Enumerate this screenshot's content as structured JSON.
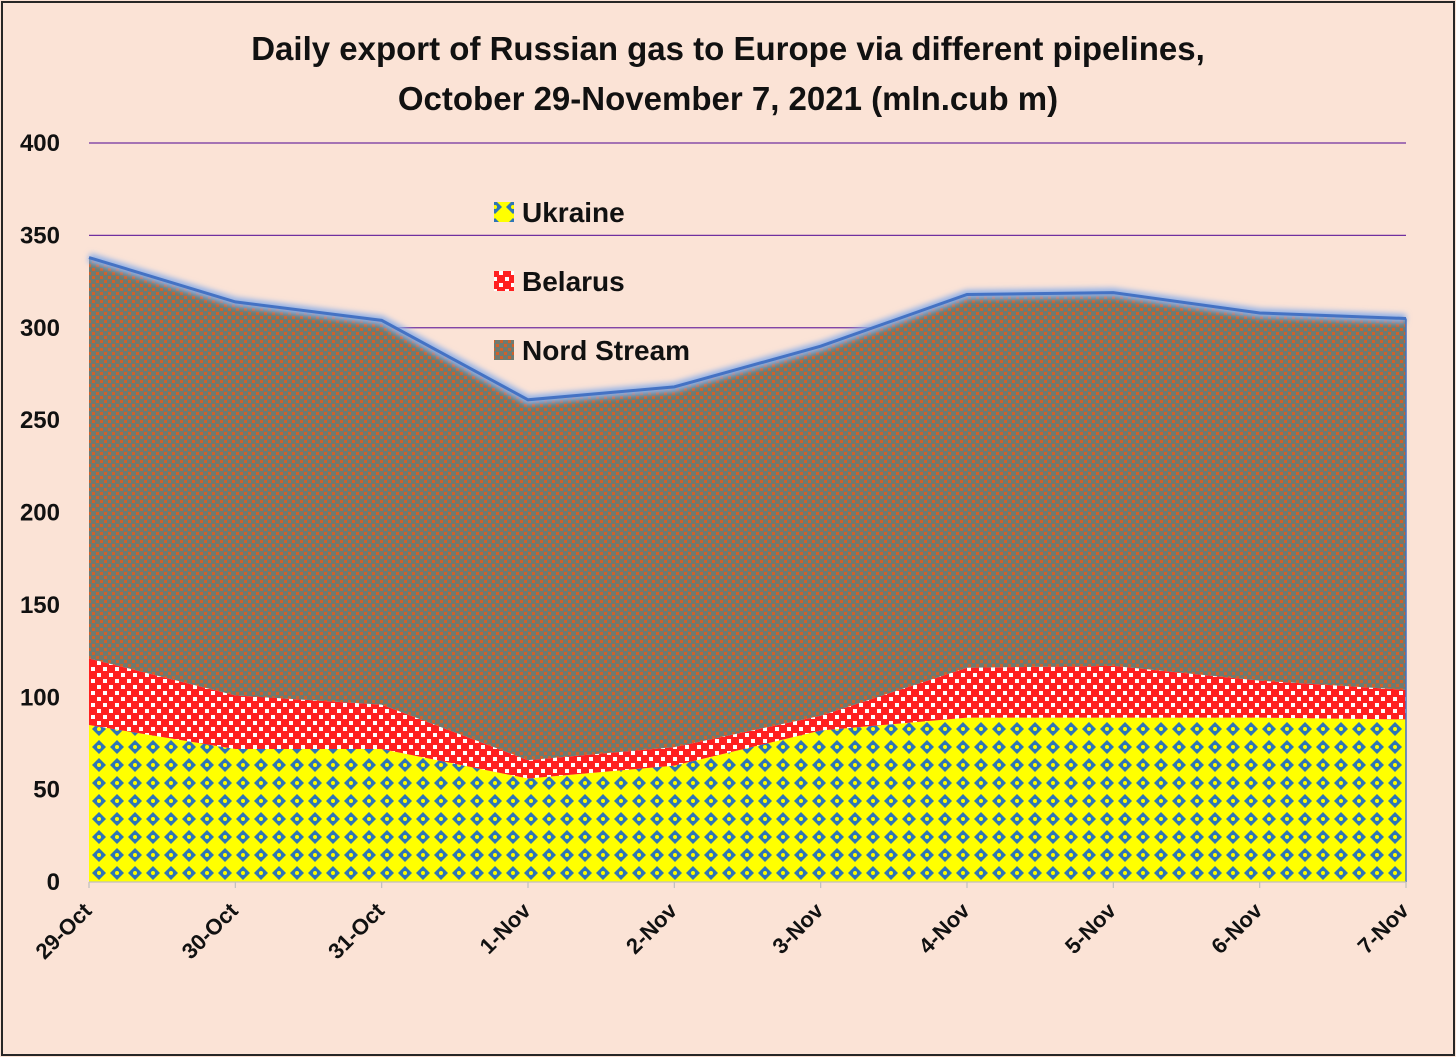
{
  "chart_data": {
    "type": "area",
    "stacked": true,
    "title": "Daily export of Russian gas to Europe via different pipelines,",
    "subtitle": "October 29-November 7, 2021 (mln.cub m)",
    "xlabel": "",
    "ylabel": "",
    "ylim": [
      0,
      400
    ],
    "yticks": [
      0,
      50,
      100,
      150,
      200,
      250,
      300,
      350,
      400
    ],
    "categories": [
      "29-Oct",
      "30-Oct",
      "31-Oct",
      "1-Nov",
      "2-Nov",
      "3-Nov",
      "4-Nov",
      "5-Nov",
      "6-Nov",
      "7-Nov"
    ],
    "series": [
      {
        "name": "Ukraine",
        "values": [
          85,
          72,
          72,
          56,
          63,
          82,
          89,
          89,
          89,
          88
        ]
      },
      {
        "name": "Belarus",
        "values": [
          36,
          29,
          24,
          10,
          10,
          8,
          27,
          28,
          20,
          16
        ]
      },
      {
        "name": "Nord Stream",
        "values": [
          217,
          213,
          208,
          195,
          195,
          200,
          202,
          202,
          199,
          201
        ]
      }
    ],
    "legend_position": "top-center",
    "grid": "horizontal",
    "colors": {
      "background": "#fbe3d6",
      "ukraine_fill": "#ffff00",
      "ukraine_dots": "#2e75b6",
      "belarus_fill": "#ffffff",
      "belarus_dots": "#ff0000",
      "nord_fill": "#7f7f6a",
      "nord_dots": "#e06020",
      "top_line": "#4472c4",
      "gridline": "#7030a0"
    }
  }
}
